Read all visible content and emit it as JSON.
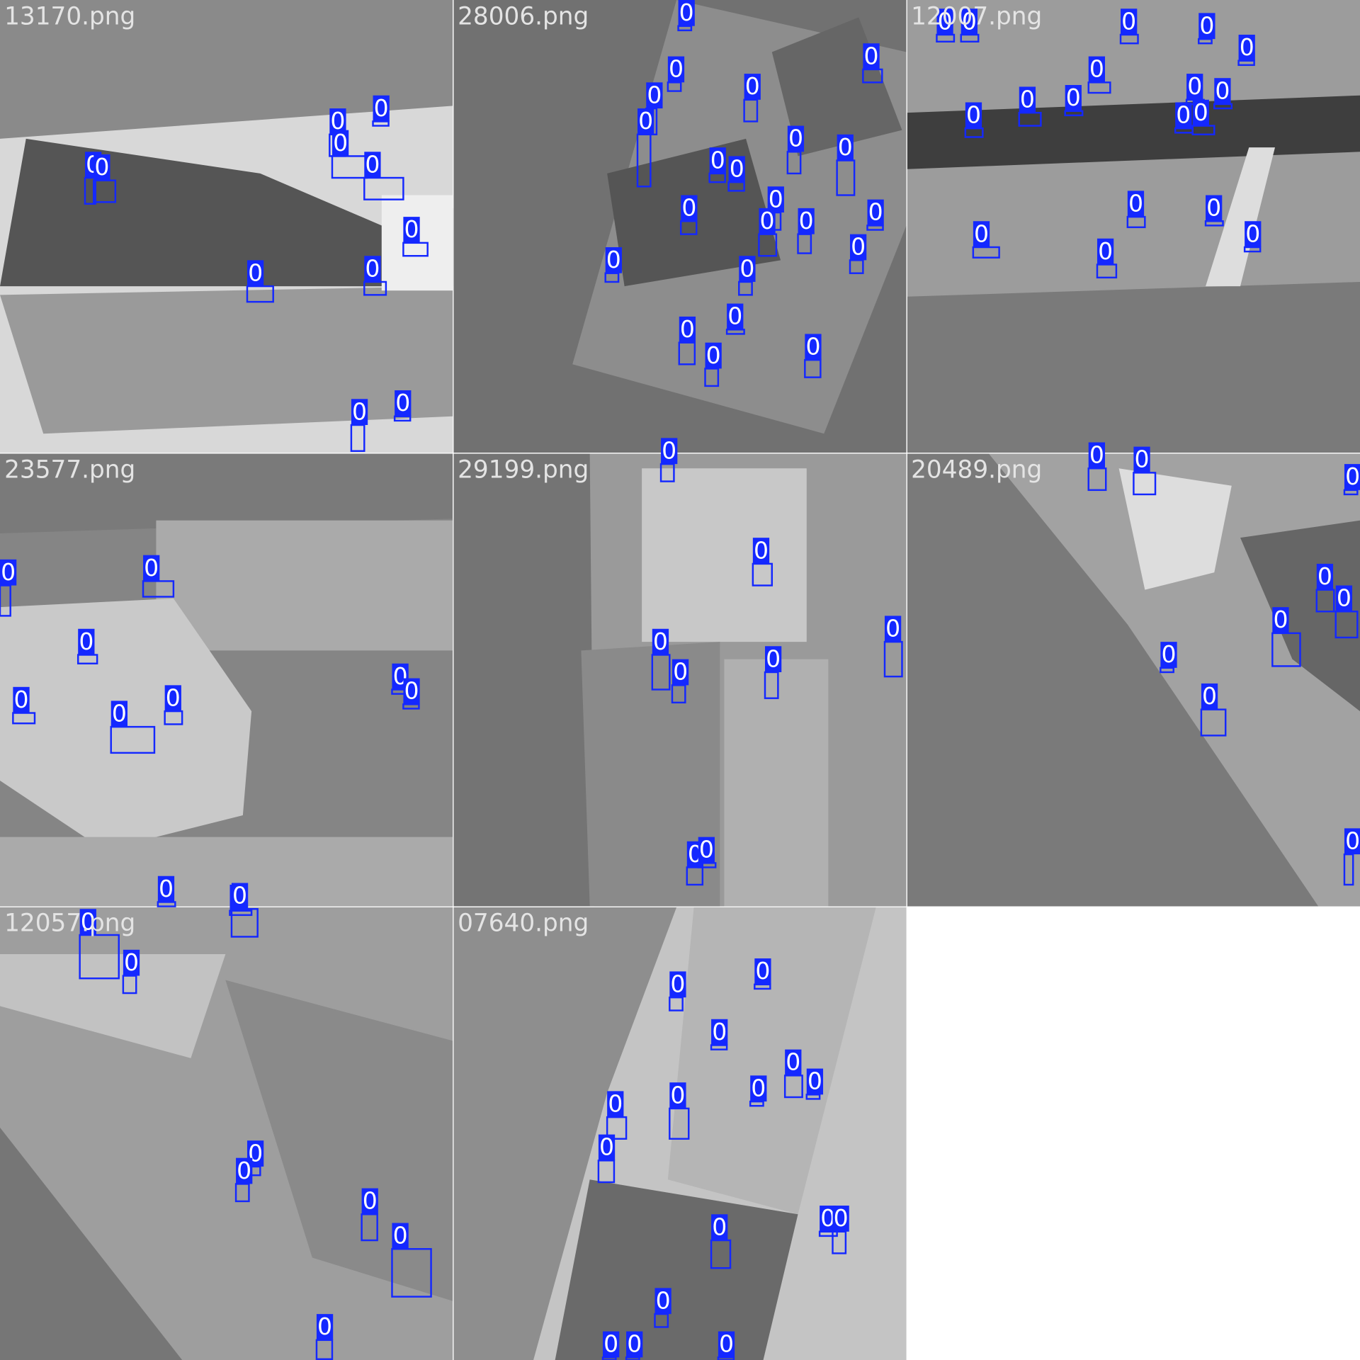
{
  "tiles": [
    {
      "filename": "13170.png",
      "boxes": [
        "0",
        "0",
        "0",
        "0",
        "0",
        "0",
        "0",
        "0",
        "0",
        "0",
        "0"
      ]
    },
    {
      "filename": "28006.png",
      "boxes": [
        "0",
        "0",
        "0",
        "0",
        "0",
        "0",
        "0",
        "0",
        "0",
        "0",
        "0",
        "0",
        "0",
        "0",
        "0",
        "0",
        "0",
        "0",
        "0",
        "0",
        "0",
        "0"
      ]
    },
    {
      "filename": "12007.png",
      "boxes": [
        "0",
        "0",
        "0",
        "0",
        "0",
        "0",
        "0",
        "0",
        "0",
        "0",
        "0",
        "0",
        "0",
        "0",
        "0",
        "0",
        "0",
        "0"
      ]
    },
    {
      "filename": "23577.png",
      "boxes": [
        "0",
        "0",
        "0",
        "0",
        "0",
        "0",
        "0",
        "0",
        "0",
        "0"
      ]
    },
    {
      "filename": "29199.png",
      "boxes": [
        "0",
        "0",
        "0",
        "0",
        "0",
        "0",
        "0",
        "0"
      ]
    },
    {
      "filename": "20489.png",
      "boxes": [
        "0",
        "0",
        "0",
        "0",
        "0",
        "0",
        "0",
        "0",
        "0"
      ]
    },
    {
      "filename": "12057.png",
      "boxes": [
        "0",
        "0",
        "0",
        "0",
        "0",
        "0",
        "0",
        "0"
      ]
    },
    {
      "filename": "07640.png",
      "boxes": [
        "0",
        "0",
        "0",
        "0",
        "0",
        "0",
        "0",
        "0",
        "0",
        "0",
        "0",
        "0",
        "0",
        "0",
        "0",
        "0"
      ]
    }
  ]
}
